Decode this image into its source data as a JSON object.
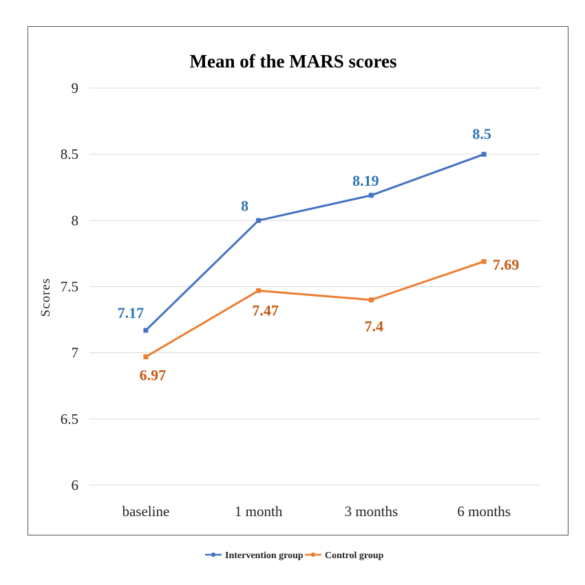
{
  "chart_data": {
    "type": "line",
    "title": "Mean of the MARS scores",
    "ylabel": "Scores",
    "xlabel": "",
    "categories": [
      "baseline",
      "1 month",
      "3 months",
      "6 months"
    ],
    "ylim": [
      6,
      9
    ],
    "yticks": [
      6,
      6.5,
      7,
      7.5,
      8,
      8.5,
      9
    ],
    "ytick_labels": [
      "6",
      "6.5",
      "7",
      "7.5",
      "8",
      "8.5",
      "9"
    ],
    "grid": true,
    "legend_position": "bottom",
    "series": [
      {
        "name": "Intervention group",
        "color": "#4472C4",
        "label_color": "#2E75B6",
        "values": [
          7.17,
          8,
          8.19,
          8.5
        ],
        "labels": [
          "7.17",
          "8",
          "8.19",
          "8.5"
        ],
        "label_position": "above"
      },
      {
        "name": "Control group",
        "color": "#ED7D31",
        "label_color": "#C55A11",
        "values": [
          6.97,
          7.47,
          7.4,
          7.69
        ],
        "labels": [
          "6.97",
          "7.47",
          "7.4",
          "7.69"
        ],
        "label_position": "below"
      }
    ]
  }
}
